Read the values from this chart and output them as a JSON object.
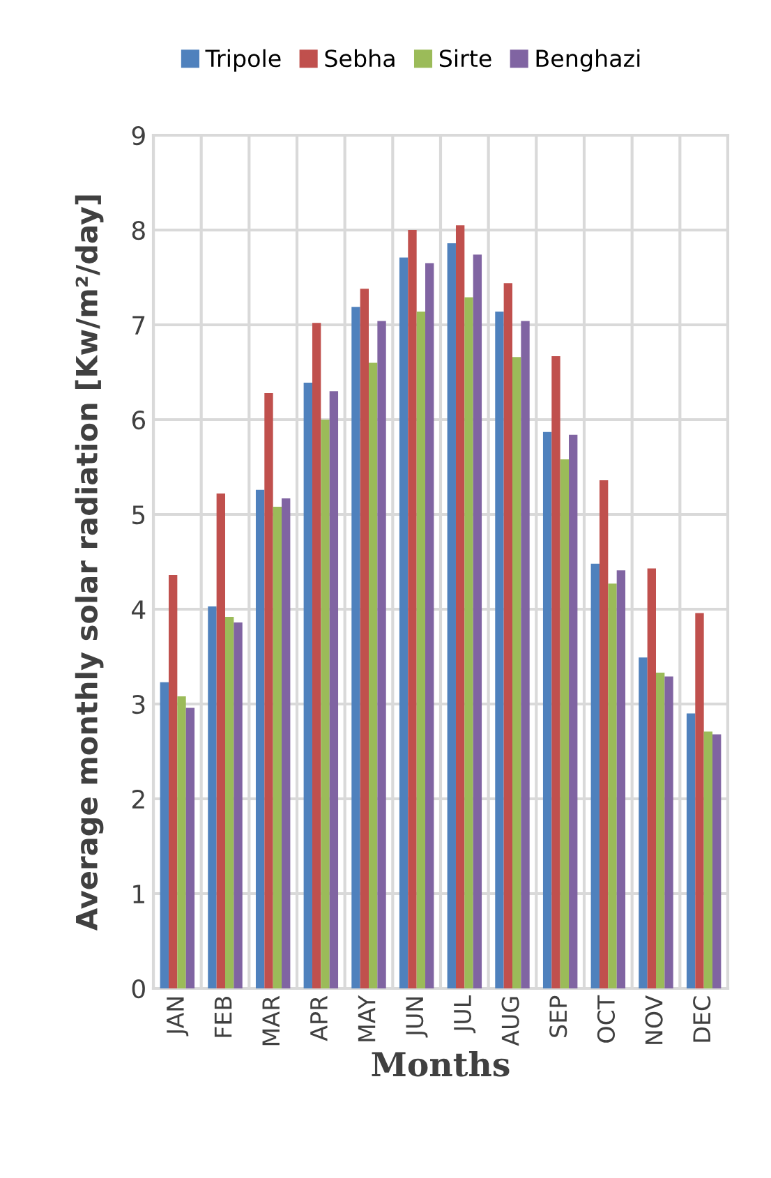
{
  "chart_data": {
    "type": "bar",
    "xlabel": "Months",
    "ylabel": "Average monthly solar radiation [Kw/m²/day]",
    "categories": [
      "JAN",
      "FEB",
      "MAR",
      "APR",
      "MAY",
      "JUN",
      "JUL",
      "AUG",
      "SEP",
      "OCT",
      "NOV",
      "DEC"
    ],
    "series": [
      {
        "name": "Tripole",
        "color": "#4f81bd",
        "values": [
          3.23,
          4.03,
          5.26,
          6.39,
          7.19,
          7.71,
          7.86,
          7.14,
          5.87,
          4.48,
          3.49,
          2.9
        ]
      },
      {
        "name": "Sebha",
        "color": "#c0504d",
        "values": [
          4.36,
          5.22,
          6.28,
          7.02,
          7.38,
          8.0,
          8.05,
          7.44,
          6.67,
          5.36,
          4.43,
          3.96
        ]
      },
      {
        "name": "Sirte",
        "color": "#9bbb59",
        "values": [
          3.08,
          3.92,
          5.08,
          6.0,
          6.6,
          7.14,
          7.29,
          6.66,
          5.58,
          4.27,
          3.33,
          2.71
        ]
      },
      {
        "name": "Benghazi",
        "color": "#8064a2",
        "values": [
          2.96,
          3.86,
          5.17,
          6.3,
          7.04,
          7.65,
          7.74,
          7.04,
          5.84,
          4.41,
          3.29,
          2.68
        ]
      }
    ],
    "ylim": [
      0,
      9
    ],
    "yticks": [
      0,
      1,
      2,
      3,
      4,
      5,
      6,
      7,
      8,
      9
    ],
    "grid": true,
    "legend": "top"
  }
}
